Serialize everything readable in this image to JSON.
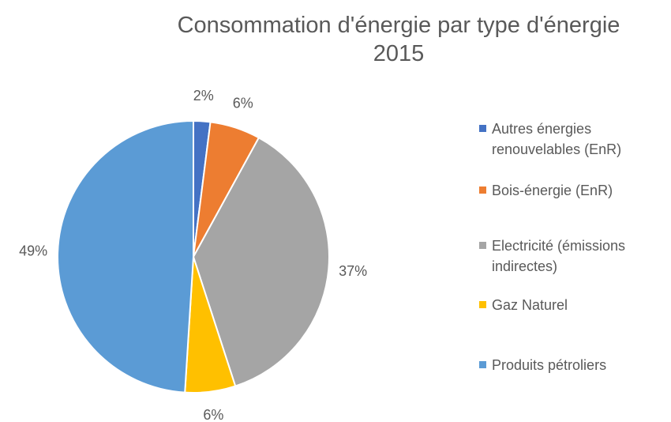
{
  "chart_data": {
    "type": "pie",
    "title": "Consommation d'énergie par type d'énergie 2015",
    "categories": [
      "Autres énergies renouvelables (EnR)",
      "Bois-énergie (EnR)",
      "Electricité (émissions indirectes)",
      "Gaz Naturel",
      "Produits pétroliers"
    ],
    "values": [
      2,
      6,
      37,
      6,
      49
    ],
    "value_labels": [
      "2%",
      "6%",
      "37%",
      "6%",
      "49%"
    ],
    "colors": [
      "#4472c4",
      "#ed7d31",
      "#a5a5a5",
      "#ffc000",
      "#5b9bd5"
    ],
    "legend": "right"
  }
}
